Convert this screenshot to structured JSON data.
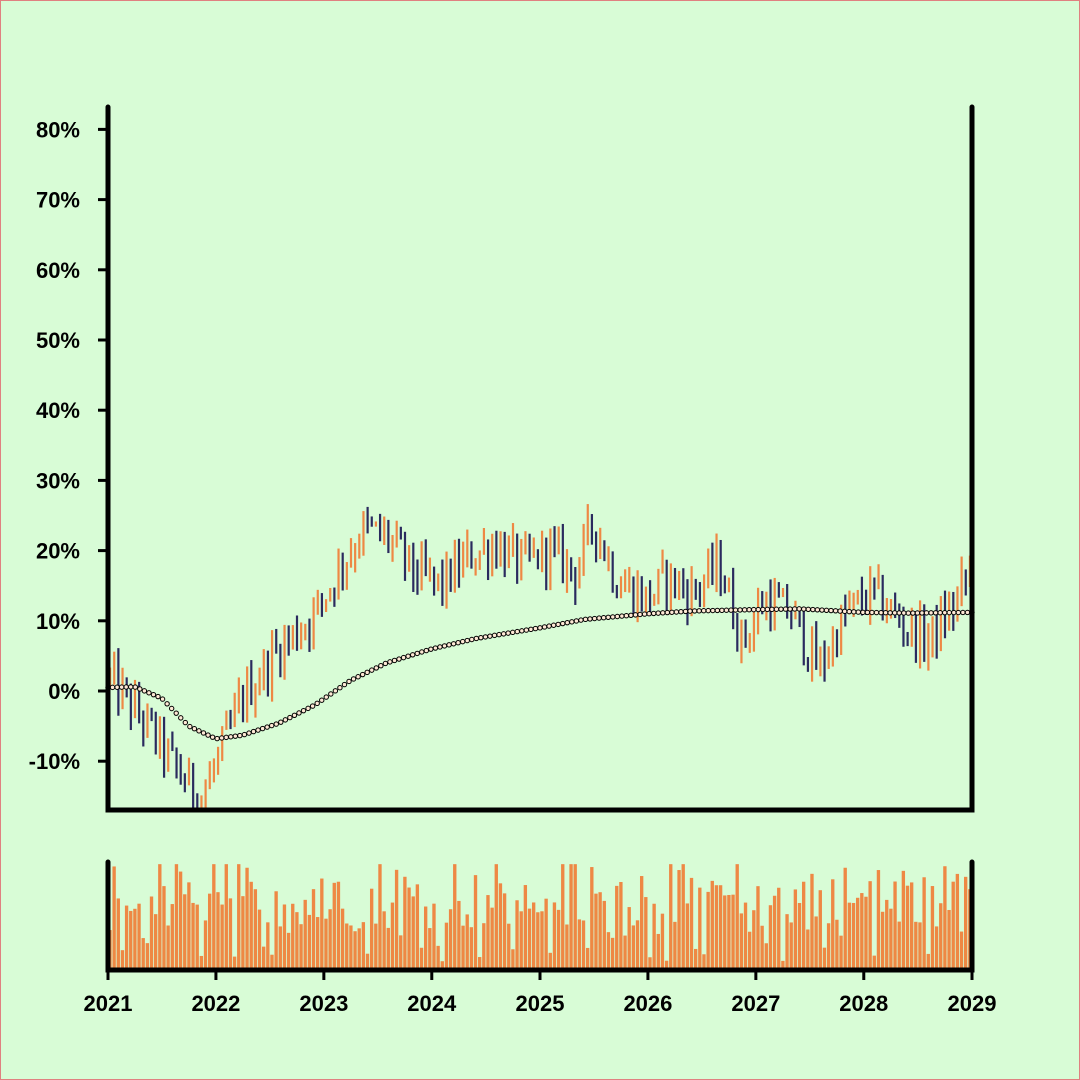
{
  "chart_data": [
    {
      "type": "ohlc",
      "title": "",
      "xlabel": "",
      "ylabel": "",
      "x_range": [
        "2021-01-01",
        "2029-01-01"
      ],
      "ylim": [
        -17,
        83
      ],
      "y_ticks": [
        -10,
        0,
        10,
        20,
        30,
        40,
        50,
        60,
        70,
        80
      ],
      "y_tick_labels": [
        "-10%",
        "0%",
        "10%",
        "20%",
        "30%",
        "40%",
        "50%",
        "60%",
        "70%",
        "80%"
      ],
      "grid": false,
      "bar_interval": "weekly (~208 bars)",
      "colors": {
        "up": "#ee8844",
        "down": "#2a2a5e",
        "moving_average": "#000000"
      },
      "close_path_anchors": {
        "comment_free_points": true,
        "x": [
          "2021-01-01",
          "2021-03-01",
          "2021-06-01",
          "2021-09-01",
          "2021-11-15",
          "2022-01-15",
          "2022-04-01",
          "2022-08-01",
          "2022-12-01",
          "2023-03-01",
          "2023-05-15",
          "2023-08-01",
          "2023-11-01",
          "2024-02-01",
          "2024-05-01",
          "2024-08-01",
          "2024-11-01",
          "2025-02-01",
          "2025-05-01",
          "2025-07-01",
          "2025-09-15",
          "2026-01-01",
          "2026-03-01",
          "2026-06-01",
          "2026-09-01",
          "2026-11-15",
          "2027-02-01",
          "2027-05-01",
          "2027-08-01",
          "2027-11-01",
          "2028-02-01",
          "2028-05-01",
          "2028-08-01",
          "2028-11-01",
          "2029-01-01"
        ],
        "y": [
          2,
          -1,
          -6,
          -12,
          -15,
          -9,
          -1,
          6,
          11,
          18,
          23,
          22,
          17,
          15,
          19,
          21,
          18,
          20,
          17,
          24,
          16,
          13,
          16,
          14,
          18,
          7,
          13,
          11,
          3,
          11,
          14,
          10,
          7,
          12,
          18
        ]
      },
      "moving_average": {
        "x": [
          "2021-01-01",
          "2021-04-01",
          "2021-07-01",
          "2021-10-01",
          "2022-01-01",
          "2022-04-01",
          "2022-08-01",
          "2022-12-01",
          "2023-04-01",
          "2023-08-01",
          "2024-01-01",
          "2024-06-01",
          "2025-01-01",
          "2025-06-01",
          "2026-01-01",
          "2026-06-01",
          "2027-01-01",
          "2027-06-01",
          "2028-01-01",
          "2028-06-01",
          "2029-01-01"
        ],
        "y": [
          0.5,
          0.6,
          -1.0,
          -5.0,
          -6.8,
          -6.3,
          -4.6,
          -2.0,
          1.5,
          4.0,
          6.0,
          7.5,
          9.0,
          10.2,
          11.0,
          11.4,
          11.6,
          11.7,
          11.2,
          11.1,
          11.2
        ]
      }
    },
    {
      "type": "bar",
      "title": "",
      "series": [
        {
          "name": "",
          "color": "#ee8844"
        }
      ],
      "x_ticks": [
        "2021",
        "2022",
        "2023",
        "2024",
        "2025",
        "2026",
        "2027",
        "2028",
        "2029"
      ],
      "volume_relative": [
        0.55,
        0.7,
        0.85,
        0.6,
        0.75,
        0.5,
        0.9,
        0.65,
        0.4,
        0.72,
        0.58,
        0.8,
        0.95,
        0.62,
        0.48,
        0.7,
        0.88,
        0.66,
        0.52,
        0.78,
        0.6,
        0.45,
        0.68,
        0.74,
        0.56,
        0.82,
        0.63,
        0.5,
        0.71,
        0.59,
        0.66,
        0.77,
        0.54,
        0.69,
        0.61,
        0.73,
        0.48,
        0.64,
        0.8,
        0.57,
        0.7,
        0.62,
        0.76,
        0.53,
        0.68,
        0.59,
        0.74,
        0.66,
        0.51,
        0.72,
        0.63,
        0.78,
        0.57,
        0.69,
        0.6,
        0.75,
        0.55,
        0.67,
        0.71,
        0.58,
        0.64,
        0.79,
        0.52,
        0.7,
        0.61,
        0.73,
        0.56,
        0.68,
        0.62,
        0.77,
        0.54,
        0.66,
        0.72,
        0.59,
        0.65,
        0.81,
        0.57,
        0.69,
        0.63,
        0.74,
        0.58,
        0.7,
        0.6,
        0.76,
        0.55,
        0.67,
        0.73,
        0.61,
        0.64,
        0.78,
        0.53,
        0.71,
        0.62,
        0.75,
        0.57,
        0.68,
        0.63,
        0.79,
        0.56,
        0.7
      ]
    }
  ]
}
